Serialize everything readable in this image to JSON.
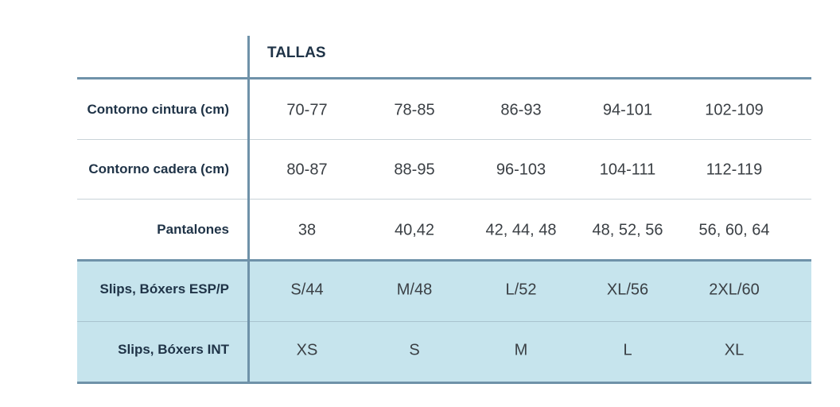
{
  "table": {
    "header": "TALLAS",
    "rows": [
      {
        "label": "Contorno cintura (cm)",
        "cells": [
          "70-77",
          "78-85",
          "86-93",
          "94-101",
          "102-109"
        ]
      },
      {
        "label": "Contorno cadera (cm)",
        "cells": [
          "80-87",
          "88-95",
          "96-103",
          "104-111",
          "112-119"
        ]
      },
      {
        "label": "Pantalones",
        "cells": [
          "38",
          "40,42",
          "42, 44, 48",
          "48, 52, 56",
          "56, 60, 64"
        ]
      },
      {
        "label": "Slips, Bóxers ESP/P",
        "cells": [
          "S/44",
          "M/48",
          "L/52",
          "XL/56",
          "2XL/60"
        ]
      },
      {
        "label": "Slips, Bóxers INT",
        "cells": [
          "XS",
          "S",
          "M",
          "L",
          "XL"
        ]
      }
    ]
  }
}
